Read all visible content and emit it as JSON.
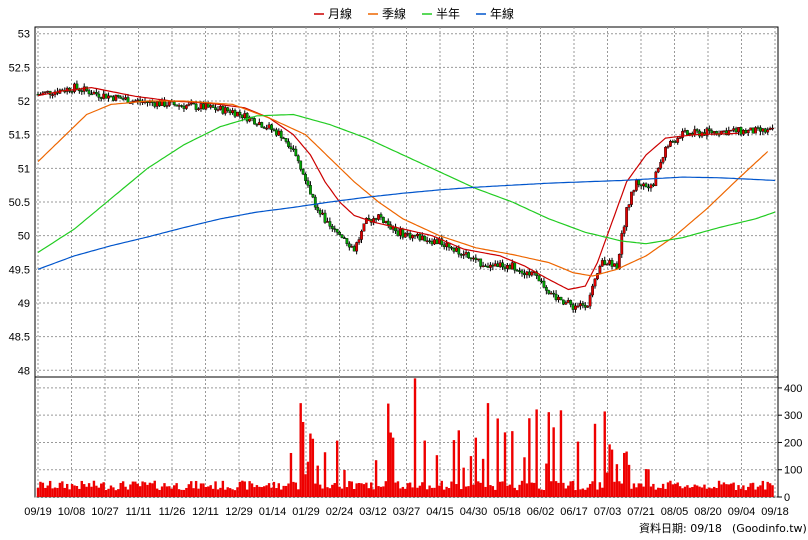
{
  "chart_data": {
    "type": "line",
    "legend": [
      {
        "label": "月線",
        "color": "#cc0000"
      },
      {
        "label": "季線",
        "color": "#ee6600"
      },
      {
        "label": "半年",
        "color": "#22cc22"
      },
      {
        "label": "年線",
        "color": "#0055cc"
      }
    ],
    "x_tick_labels": [
      "09/19",
      "10/08",
      "10/27",
      "11/11",
      "11/26",
      "12/11",
      "12/29",
      "01/14",
      "01/29",
      "02/24",
      "03/12",
      "03/27",
      "04/15",
      "04/30",
      "05/18",
      "06/02",
      "06/17",
      "07/03",
      "07/21",
      "08/05",
      "08/20",
      "09/04",
      "09/18"
    ],
    "price_axis": {
      "ticks": [
        "53",
        "52.5",
        "52",
        "51.5",
        "51",
        "50.5",
        "50",
        "49.5",
        "49",
        "48.5",
        "48"
      ],
      "ylim": [
        47.9,
        53.1
      ]
    },
    "volume_axis": {
      "ticks": [
        "400",
        "300",
        "200",
        "100",
        "0"
      ],
      "ylim": [
        0,
        440
      ]
    },
    "series": [
      {
        "name": "月線",
        "color": "#cc0000",
        "values": [
          [
            0,
            52.08
          ],
          [
            10,
            52.15
          ],
          [
            22,
            52.2
          ],
          [
            40,
            52.07
          ],
          [
            55,
            52.0
          ],
          [
            70,
            51.97
          ],
          [
            85,
            51.9
          ],
          [
            95,
            51.75
          ],
          [
            105,
            51.5
          ],
          [
            112,
            51.2
          ],
          [
            118,
            50.8
          ],
          [
            124,
            50.5
          ],
          [
            130,
            50.3
          ],
          [
            138,
            50.2
          ],
          [
            150,
            50.1
          ],
          [
            162,
            50.0
          ],
          [
            175,
            49.8
          ],
          [
            190,
            49.7
          ],
          [
            200,
            49.55
          ],
          [
            210,
            49.35
          ],
          [
            218,
            49.2
          ],
          [
            225,
            49.25
          ],
          [
            230,
            49.6
          ],
          [
            236,
            50.2
          ],
          [
            242,
            50.8
          ],
          [
            250,
            51.2
          ],
          [
            258,
            51.45
          ],
          [
            270,
            51.5
          ],
          [
            288,
            51.52
          ]
        ]
      },
      {
        "name": "季線",
        "color": "#ee6600",
        "values": [
          [
            0,
            51.1
          ],
          [
            10,
            51.45
          ],
          [
            20,
            51.8
          ],
          [
            30,
            51.95
          ],
          [
            45,
            52.0
          ],
          [
            60,
            52.0
          ],
          [
            80,
            51.95
          ],
          [
            95,
            51.75
          ],
          [
            110,
            51.5
          ],
          [
            120,
            51.15
          ],
          [
            130,
            50.8
          ],
          [
            140,
            50.5
          ],
          [
            150,
            50.25
          ],
          [
            165,
            50.0
          ],
          [
            180,
            49.82
          ],
          [
            195,
            49.72
          ],
          [
            210,
            49.6
          ],
          [
            220,
            49.45
          ],
          [
            228,
            49.4
          ],
          [
            238,
            49.5
          ],
          [
            250,
            49.7
          ],
          [
            262,
            50.0
          ],
          [
            275,
            50.4
          ],
          [
            288,
            50.85
          ],
          [
            300,
            51.25
          ]
        ]
      },
      {
        "name": "半年",
        "color": "#22cc22",
        "values": [
          [
            0,
            49.75
          ],
          [
            15,
            50.1
          ],
          [
            30,
            50.55
          ],
          [
            45,
            51.0
          ],
          [
            60,
            51.35
          ],
          [
            75,
            51.62
          ],
          [
            90,
            51.78
          ],
          [
            105,
            51.8
          ],
          [
            120,
            51.65
          ],
          [
            135,
            51.45
          ],
          [
            150,
            51.2
          ],
          [
            165,
            50.95
          ],
          [
            180,
            50.7
          ],
          [
            195,
            50.5
          ],
          [
            210,
            50.25
          ],
          [
            225,
            50.05
          ],
          [
            240,
            49.92
          ],
          [
            250,
            49.88
          ],
          [
            265,
            49.97
          ],
          [
            280,
            50.12
          ],
          [
            295,
            50.25
          ],
          [
            303,
            50.35
          ]
        ]
      },
      {
        "name": "年線",
        "color": "#0055cc",
        "values": [
          [
            0,
            49.5
          ],
          [
            15,
            49.7
          ],
          [
            30,
            49.85
          ],
          [
            45,
            49.98
          ],
          [
            60,
            50.12
          ],
          [
            75,
            50.25
          ],
          [
            90,
            50.35
          ],
          [
            105,
            50.42
          ],
          [
            120,
            50.5
          ],
          [
            135,
            50.57
          ],
          [
            150,
            50.63
          ],
          [
            165,
            50.68
          ],
          [
            180,
            50.72
          ],
          [
            195,
            50.75
          ],
          [
            210,
            50.78
          ],
          [
            225,
            50.8
          ],
          [
            240,
            50.82
          ],
          [
            255,
            50.85
          ],
          [
            265,
            50.87
          ],
          [
            280,
            50.86
          ],
          [
            292,
            50.84
          ],
          [
            303,
            50.82
          ]
        ]
      }
    ]
  },
  "source": {
    "label": "資料日期: 09/18",
    "site": "(Goodinfo.tw)"
  }
}
